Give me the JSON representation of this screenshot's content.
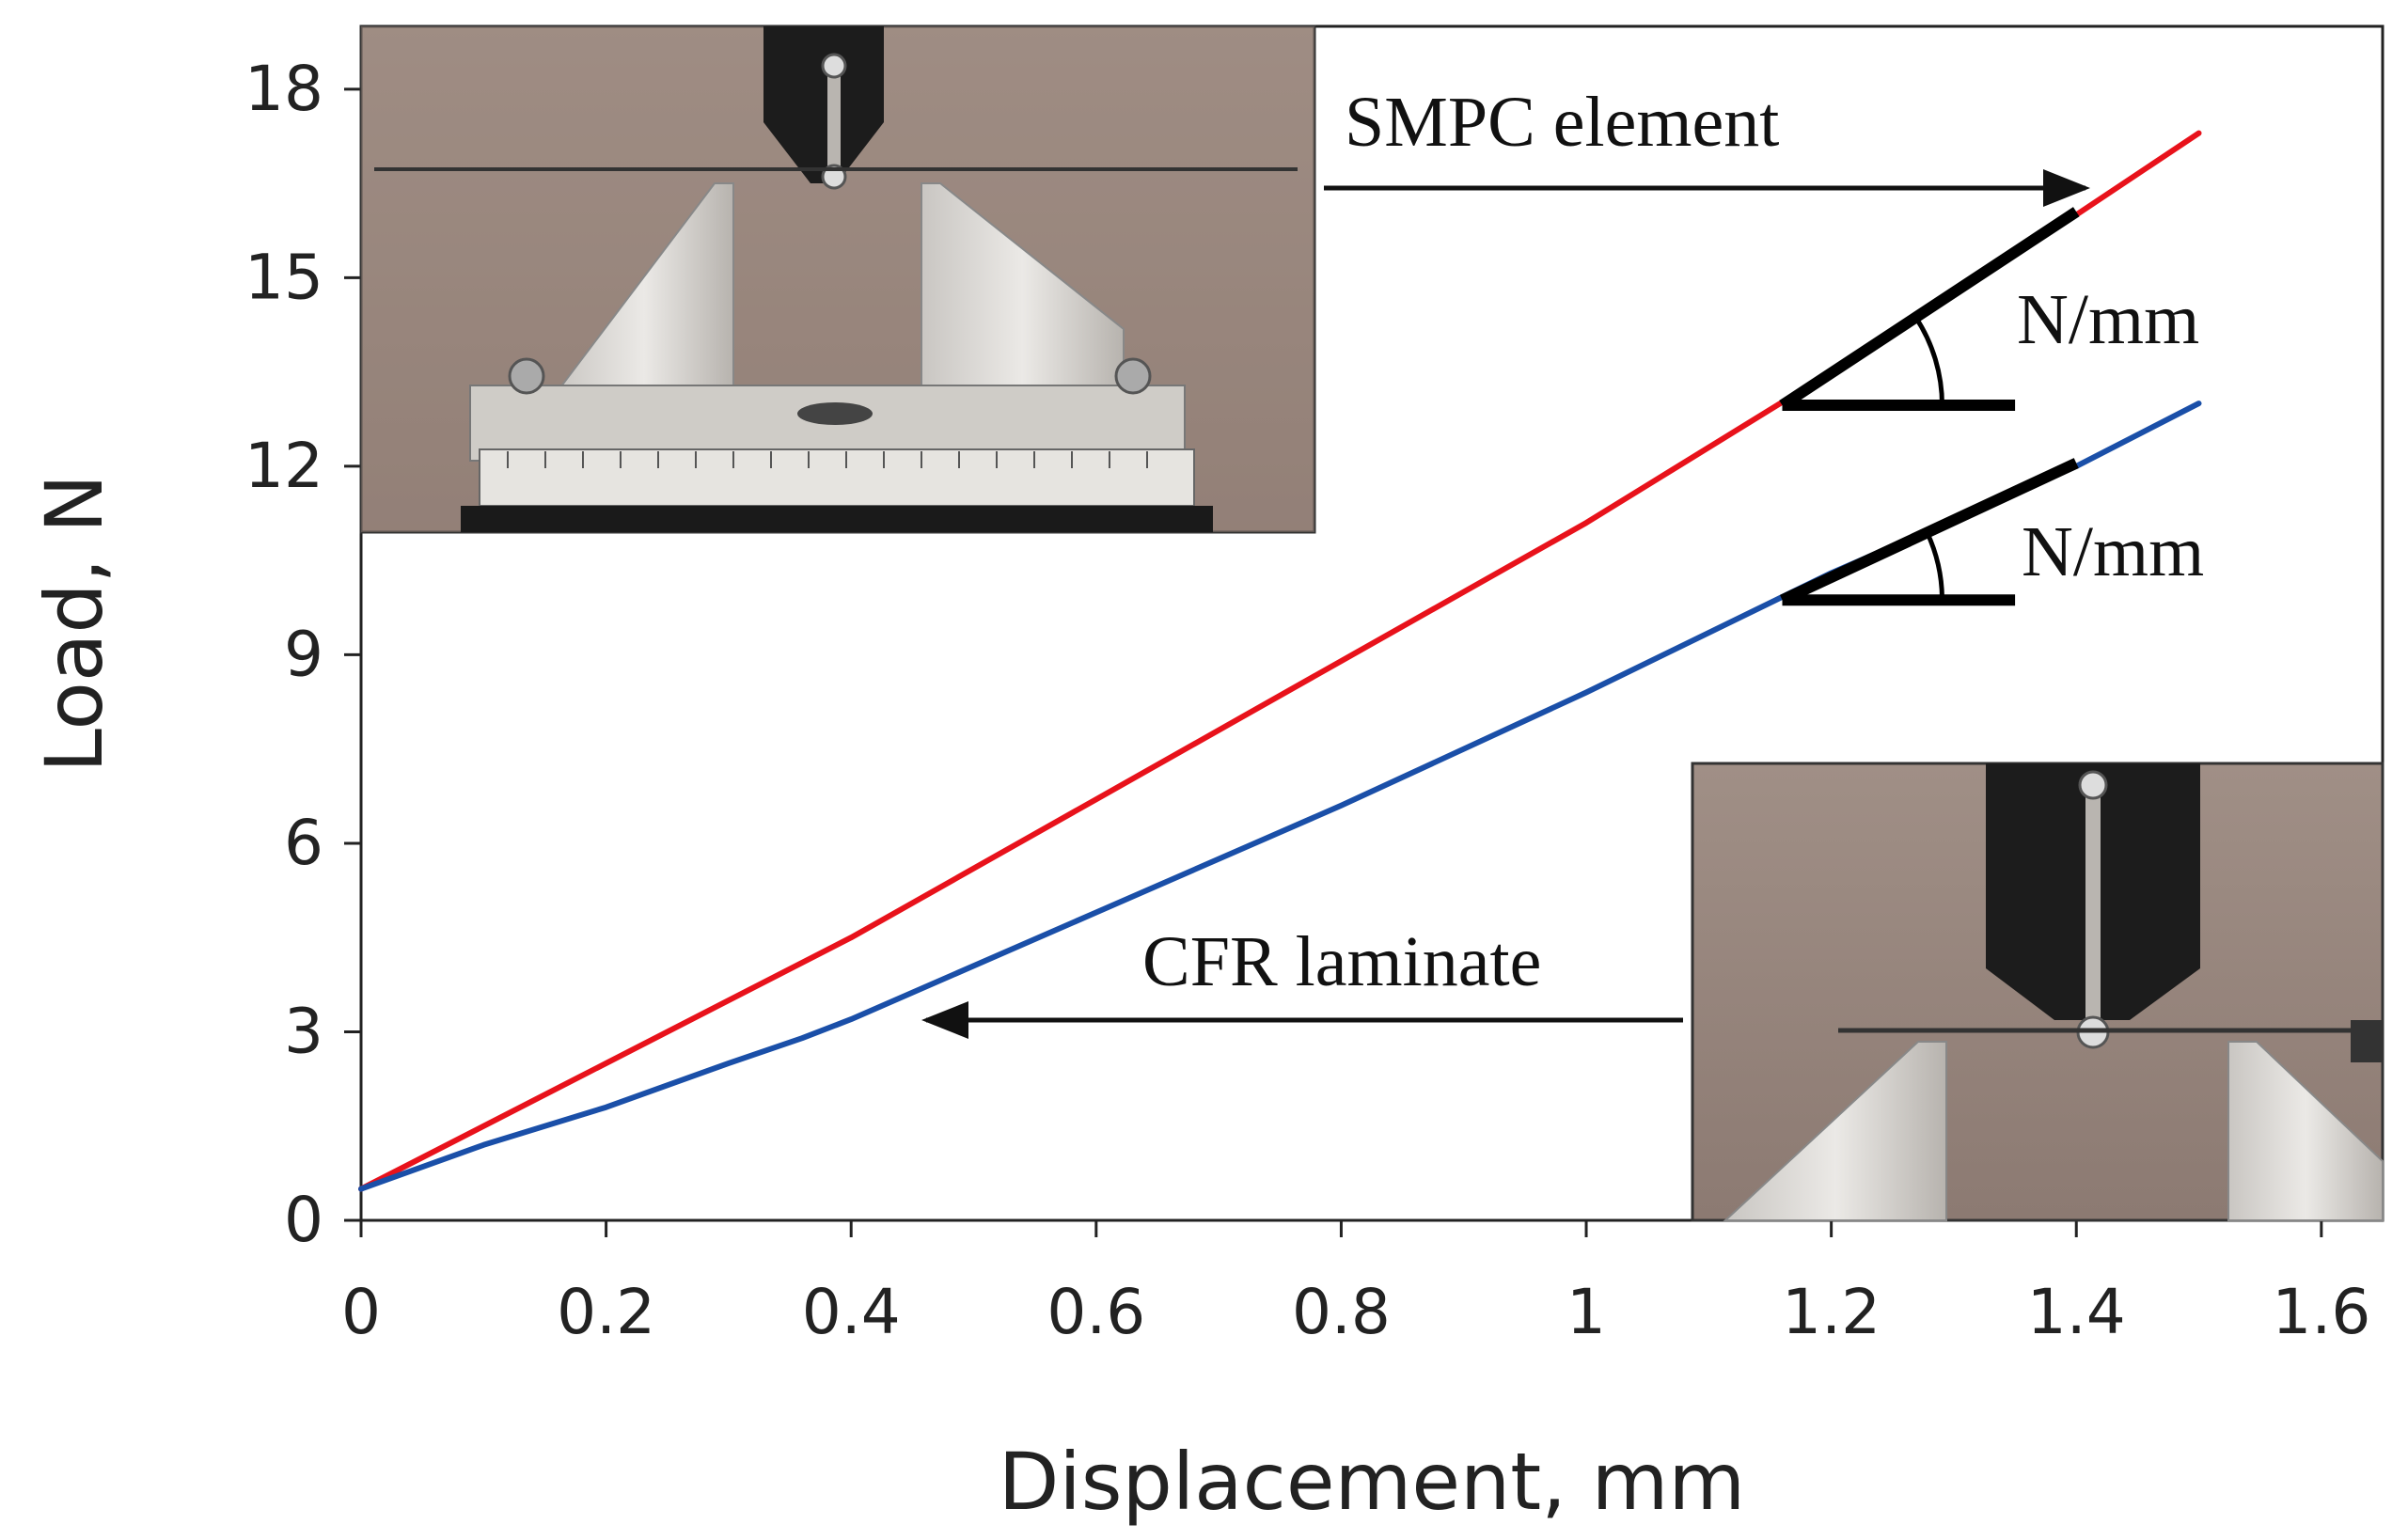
{
  "chart_data": {
    "type": "line",
    "xlabel": "Displacement, mm",
    "ylabel": "Load, N",
    "xlim": [
      0,
      1.65
    ],
    "ylim": [
      0,
      19
    ],
    "x_ticks": [
      0,
      0.2,
      0.4,
      0.6,
      0.8,
      1,
      1.2,
      1.4,
      1.6
    ],
    "x_tick_labels": [
      "0",
      "0.2",
      "0.4",
      "0.6",
      "0.8",
      "1",
      "1.2",
      "1.4",
      "1.6"
    ],
    "y_ticks": [
      0,
      3,
      6,
      9,
      12,
      15,
      18
    ],
    "y_tick_labels": [
      "0",
      "3",
      "6",
      "9",
      "12",
      "15",
      "18"
    ],
    "series": [
      {
        "name": "SMPC element",
        "color": "#e8121b",
        "x": [
          0,
          0.2,
          0.4,
          0.6,
          0.8,
          1.0,
          1.2,
          1.4,
          1.5
        ],
        "y": [
          0.5,
          2.5,
          4.5,
          6.7,
          8.9,
          11.1,
          13.5,
          16.0,
          17.3
        ]
      },
      {
        "name": "CFR laminate",
        "color": "#1a4fa8",
        "x": [
          0,
          0.1,
          0.2,
          0.3,
          0.36,
          0.4,
          0.6,
          0.8,
          1.0,
          1.2,
          1.4,
          1.5
        ],
        "y": [
          0.5,
          1.2,
          1.8,
          2.5,
          2.9,
          3.2,
          4.9,
          6.6,
          8.4,
          10.3,
          12.0,
          13.0
        ]
      }
    ],
    "slope_labels": [
      {
        "text": "N/mm",
        "series": "SMPC element"
      },
      {
        "text": "N/mm",
        "series": "CFR laminate"
      }
    ],
    "annotations": [
      {
        "text": "SMPC element",
        "arrow": "points to SMPC element curve"
      },
      {
        "text": "CFR laminate",
        "arrow": "points to CFR laminate curve"
      }
    ],
    "grid": false,
    "insets": [
      {
        "name": "SMPC element test setup photo"
      },
      {
        "name": "CFR laminate test setup photo"
      }
    ]
  },
  "colors": {
    "smpc": "#e8121b",
    "cfr": "#1a4fa8",
    "axis": "#222222"
  }
}
